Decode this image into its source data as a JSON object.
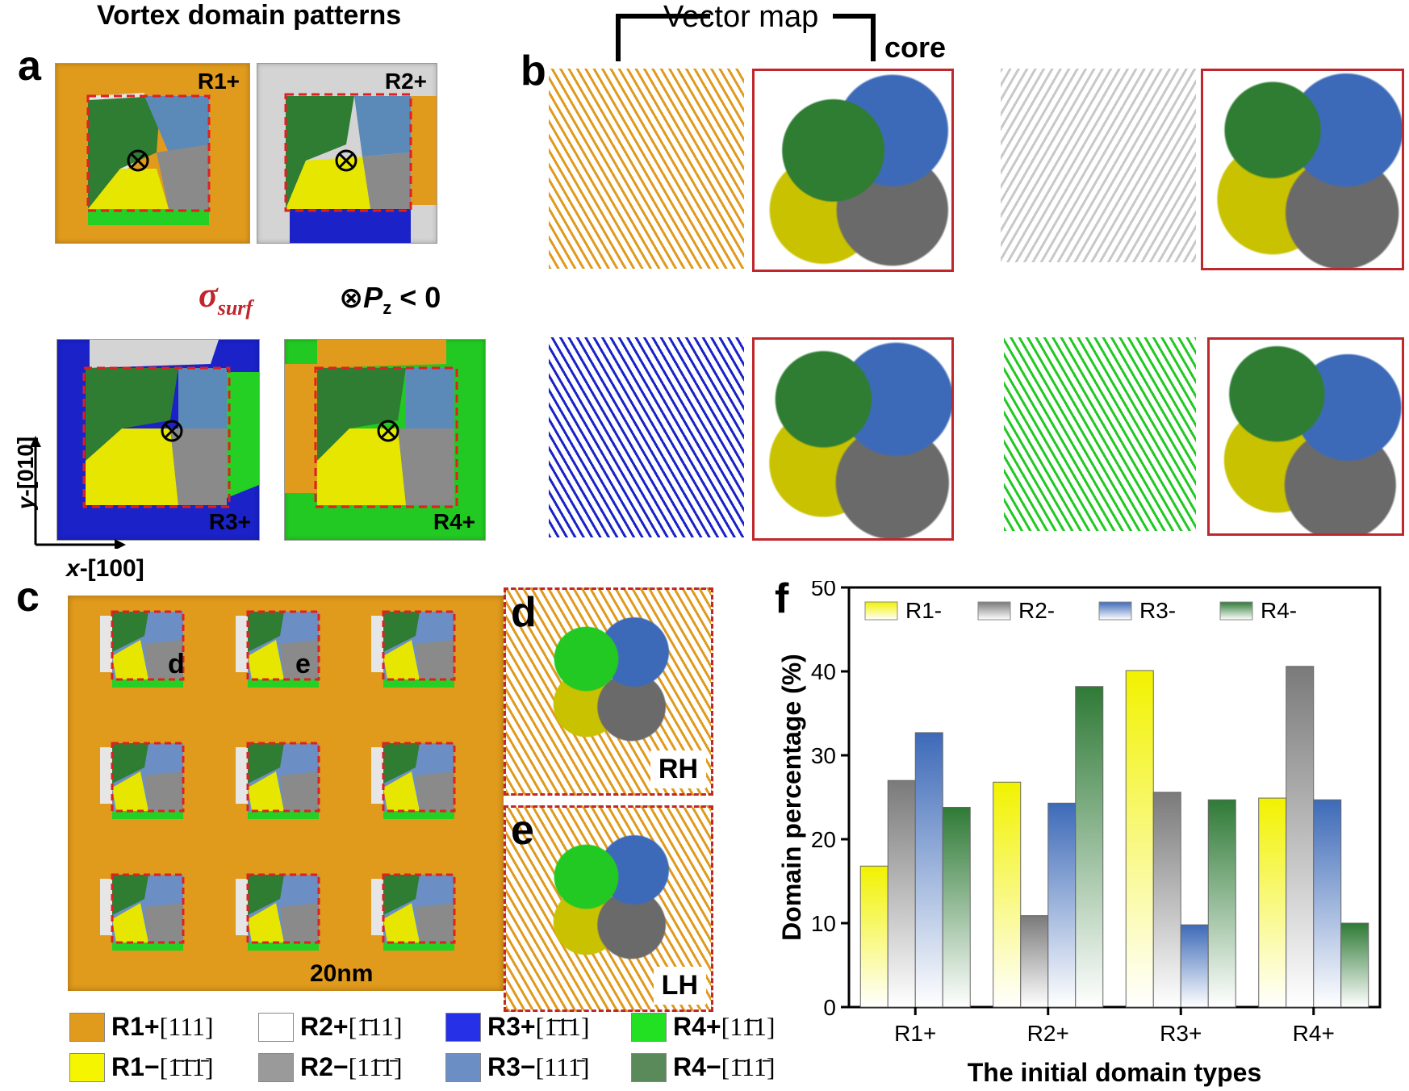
{
  "panel_a": {
    "title": "Vortex domain patterns",
    "letter": "a",
    "tiles": [
      {
        "label": "R1+",
        "bg": "#e09a1c"
      },
      {
        "label": "R2+",
        "bg": "#d4d4d4"
      },
      {
        "label": "R3+",
        "bg": "#1a22c8"
      },
      {
        "label": "R4+",
        "bg": "#22c922"
      }
    ],
    "sigma_label": "σ",
    "sigma_sub": "surf",
    "pz_symbol": "⊗",
    "pz_var": "P",
    "pz_sub": "z",
    "pz_rest": " < 0",
    "axis_y_label": "y",
    "axis_y_dir": "-[010]",
    "axis_x_label": "x",
    "axis_x_dir": "-[100]"
  },
  "panel_b": {
    "letter": "b",
    "vector_map_label": "Vector map",
    "core_label": "core"
  },
  "panel_c": {
    "letter": "c",
    "d_marker": "d",
    "e_marker": "e",
    "scale_label": "20nm"
  },
  "panel_d": {
    "letter": "d",
    "label": "RH"
  },
  "panel_e": {
    "letter": "e",
    "label": "LH"
  },
  "legend": [
    {
      "code": "R1+",
      "dir": "[111]",
      "color": "#e09a1c"
    },
    {
      "code": "R2+",
      "dir": "[1̄11]",
      "color": "#ffffff"
    },
    {
      "code": "R3+",
      "dir": "[1̄1̄1]",
      "color": "#2630e6"
    },
    {
      "code": "R4+",
      "dir": "[11̄1]",
      "color": "#22e022"
    },
    {
      "code": "R1−",
      "dir": "[1̄1̄1̄]",
      "color": "#f5f500"
    },
    {
      "code": "R2−",
      "dir": "[11̄1̄]",
      "color": "#9a9a9a"
    },
    {
      "code": "R3−",
      "dir": "[111̄]",
      "color": "#6b8fc4"
    },
    {
      "code": "R4−",
      "dir": "[1̄11̄]",
      "color": "#5a8a5a"
    }
  ],
  "chart_data": {
    "type": "bar",
    "panel_letter": "f",
    "categories": [
      "R1+",
      "R2+",
      "R3+",
      "R4+"
    ],
    "series": [
      {
        "name": "R1-",
        "color": "#f2f200",
        "values": [
          16.8,
          26.8,
          40.1,
          24.9
        ]
      },
      {
        "name": "R2-",
        "color": "#7a7a7a",
        "values": [
          27.0,
          10.9,
          25.6,
          40.6
        ]
      },
      {
        "name": "R3-",
        "color": "#3d6ab8",
        "values": [
          32.7,
          24.3,
          9.8,
          24.7
        ]
      },
      {
        "name": "R4-",
        "color": "#2f7a36",
        "values": [
          23.8,
          38.2,
          24.7,
          10.0
        ]
      }
    ],
    "xlabel": "The initial domain types",
    "ylabel": "Domain percentage (%)",
    "ylim": [
      0,
      50
    ],
    "yticks": [
      "0",
      "10",
      "20",
      "30",
      "40",
      "50"
    ],
    "legend_position": "top"
  }
}
